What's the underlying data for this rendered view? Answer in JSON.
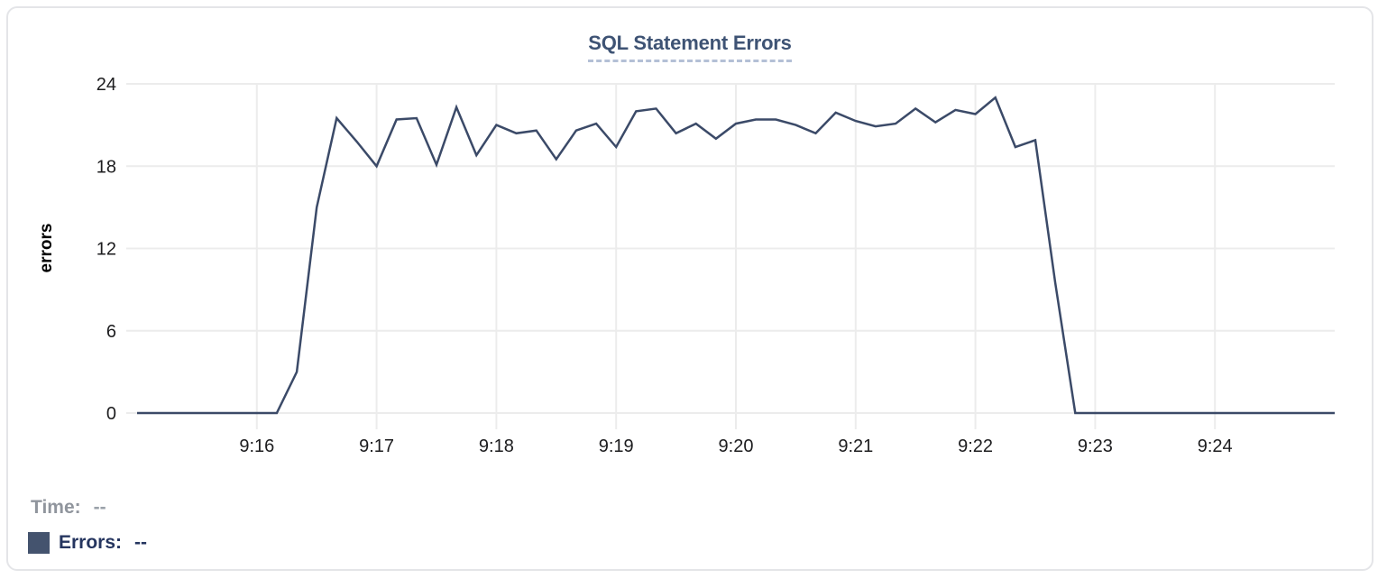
{
  "card": {
    "title": "SQL Statement Errors"
  },
  "legend": {
    "time_label": "Time:",
    "time_value": "--",
    "errors_label": "Errors:",
    "errors_value": "--",
    "swatch_color": "#44536e"
  },
  "colors": {
    "title": "#3e5374",
    "title_underline": "#b4c0d6",
    "line": "#3b4a68",
    "grid": "#ececec",
    "tick_text": "#1c1c1e",
    "legend_time": "#90959d",
    "legend_errors": "#25355f",
    "card_border": "#e4e5e8"
  },
  "chart_data": {
    "type": "line",
    "title": "SQL Statement Errors",
    "xlabel": "",
    "ylabel": "errors",
    "ylim": [
      0,
      24
    ],
    "y_ticks": [
      0,
      6,
      12,
      18,
      24
    ],
    "x_tick_labels": [
      "9:16",
      "9:17",
      "9:18",
      "9:19",
      "9:20",
      "9:21",
      "9:22",
      "9:23",
      "9:24"
    ],
    "x_range": [
      "9:15:00",
      "9:25:00"
    ],
    "interval_seconds": 10,
    "grid": true,
    "legend_position": "bottom-left",
    "series": [
      {
        "name": "Errors",
        "color": "#3b4a68",
        "x": [
          "9:15:00",
          "9:15:10",
          "9:15:20",
          "9:15:30",
          "9:15:40",
          "9:15:50",
          "9:16:00",
          "9:16:10",
          "9:16:20",
          "9:16:30",
          "9:16:40",
          "9:16:50",
          "9:17:00",
          "9:17:10",
          "9:17:20",
          "9:17:30",
          "9:17:40",
          "9:17:50",
          "9:18:00",
          "9:18:10",
          "9:18:20",
          "9:18:30",
          "9:18:40",
          "9:18:50",
          "9:19:00",
          "9:19:10",
          "9:19:20",
          "9:19:30",
          "9:19:40",
          "9:19:50",
          "9:20:00",
          "9:20:10",
          "9:20:20",
          "9:20:30",
          "9:20:40",
          "9:20:50",
          "9:21:00",
          "9:21:10",
          "9:21:20",
          "9:21:30",
          "9:21:40",
          "9:21:50",
          "9:22:00",
          "9:22:10",
          "9:22:20",
          "9:22:30",
          "9:22:40",
          "9:22:50",
          "9:23:00",
          "9:23:10",
          "9:23:20",
          "9:23:30",
          "9:23:40",
          "9:23:50",
          "9:24:00",
          "9:24:10",
          "9:24:20",
          "9:24:30",
          "9:24:40",
          "9:24:50",
          "9:25:00"
        ],
        "values": [
          0,
          0,
          0,
          0,
          0,
          0,
          0,
          0,
          3,
          15,
          21.5,
          19.8,
          18,
          21.4,
          21.5,
          18.1,
          22.3,
          18.8,
          21,
          20.4,
          20.6,
          18.5,
          20.6,
          21.1,
          19.4,
          22,
          22.2,
          20.4,
          21.1,
          20,
          21.1,
          21.4,
          21.4,
          21,
          20.4,
          21.9,
          21.3,
          20.9,
          21.1,
          22.2,
          21.2,
          22.1,
          21.8,
          23,
          19.4,
          19.9,
          9.5,
          0,
          0,
          0,
          0,
          0,
          0,
          0,
          0,
          0,
          0,
          0,
          0,
          0,
          0
        ]
      }
    ]
  }
}
